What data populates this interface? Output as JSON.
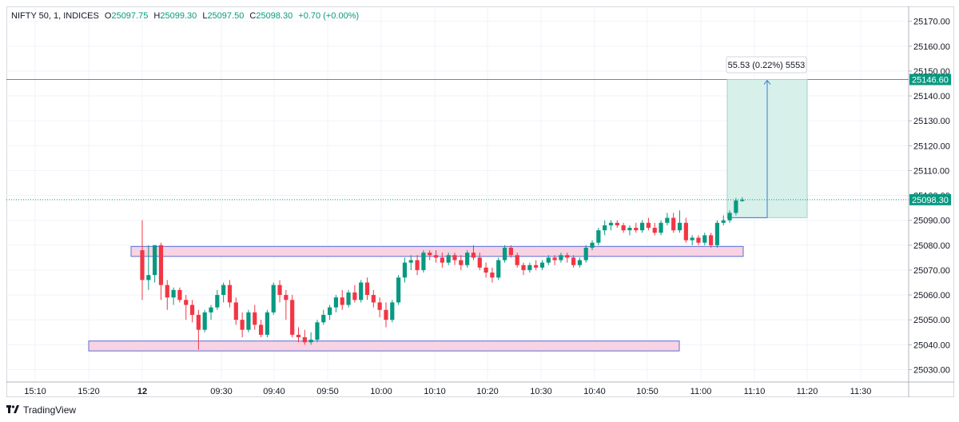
{
  "header": {
    "symbol": "NIFTY 50, 1, INDICES",
    "o_label": "O",
    "o_value": "25097.75",
    "h_label": "H",
    "h_value": "25099.30",
    "l_label": "L",
    "l_value": "25097.50",
    "c_label": "C",
    "c_value": "25098.30",
    "change": "+0.70 (+0.00%)"
  },
  "footer": {
    "brand": "TradingView"
  },
  "colors": {
    "up": "#089981",
    "down": "#f23645",
    "zone_fill": "#f8d3e3",
    "zone_border": "#5b6fd6",
    "target_fill": "#d7f0ea",
    "target_line": "#4a97a3",
    "grid": "#f0f3fa"
  },
  "chart_data": {
    "type": "candlestick",
    "y_ticks": [
      "25170.00",
      "25160.00",
      "25150.00",
      "25140.00",
      "25130.00",
      "25120.00",
      "25110.00",
      "25100.00",
      "25090.00",
      "25080.00",
      "25070.00",
      "25060.00",
      "25050.00",
      "25040.00",
      "25030.00"
    ],
    "ylim": [
      25025,
      25176
    ],
    "x_ticks": [
      {
        "t": 15.1667,
        "label": "15:10"
      },
      {
        "t": 15.3333,
        "label": "15:20"
      },
      {
        "t": 12,
        "label": "12"
      },
      {
        "t": 12.5,
        "label": "09:30"
      },
      {
        "t": 12.6667,
        "label": "09:40"
      },
      {
        "t": 12.8333,
        "label": "09:50"
      },
      {
        "t": 13,
        "label": "10:00"
      },
      {
        "t": 13.1667,
        "label": "10:10"
      },
      {
        "t": 13.3333,
        "label": "10:20"
      },
      {
        "t": 13.5,
        "label": "10:30"
      },
      {
        "t": 13.6667,
        "label": "10:40"
      },
      {
        "t": 13.8333,
        "label": "10:50"
      },
      {
        "t": 14,
        "label": "11:00"
      },
      {
        "t": 14.1667,
        "label": "11:10"
      },
      {
        "t": 14.3333,
        "label": "11:20"
      },
      {
        "t": 14.5,
        "label": "11:30"
      }
    ],
    "candles": [
      [
        25078,
        25090,
        25058,
        25066
      ],
      [
        25066,
        25080,
        25062,
        25068
      ],
      [
        25068,
        25080,
        25065,
        25080
      ],
      [
        25080,
        25081,
        25058,
        25064
      ],
      [
        25064,
        25066,
        25054,
        25059
      ],
      [
        25059,
        25063,
        25056,
        25062
      ],
      [
        25062,
        25063,
        25057,
        25058
      ],
      [
        25058,
        25060,
        25050,
        25056
      ],
      [
        25056,
        25058,
        25049,
        25052
      ],
      [
        25052,
        25054,
        25038,
        25046
      ],
      [
        25046,
        25054,
        25045,
        25053
      ],
      [
        25053,
        25056,
        25050,
        25055
      ],
      [
        25055,
        25062,
        25054,
        25060
      ],
      [
        25060,
        25065,
        25057,
        25064
      ],
      [
        25064,
        25066,
        25055,
        25057
      ],
      [
        25057,
        25059,
        25048,
        25050
      ],
      [
        25050,
        25053,
        25043,
        25046
      ],
      [
        25046,
        25054,
        25045,
        25053
      ],
      [
        25053,
        25056,
        25046,
        25048
      ],
      [
        25048,
        25050,
        25043,
        25044
      ],
      [
        25044,
        25054,
        25043,
        25053
      ],
      [
        25053,
        25065,
        25052,
        25064
      ],
      [
        25064,
        25066,
        25057,
        25060
      ],
      [
        25060,
        25062,
        25050,
        25058
      ],
      [
        25058,
        25060,
        25043,
        25044
      ],
      [
        25044,
        25047,
        25041,
        25043
      ],
      [
        25043,
        25046,
        25040,
        25041
      ],
      [
        25041,
        25045,
        25040,
        25042
      ],
      [
        25042,
        25050,
        25041,
        25049
      ],
      [
        25049,
        25054,
        25048,
        25052
      ],
      [
        25052,
        25056,
        25050,
        25055
      ],
      [
        25055,
        25060,
        25053,
        25059
      ],
      [
        25059,
        25062,
        25054,
        25056
      ],
      [
        25056,
        25062,
        25055,
        25061
      ],
      [
        25061,
        25064,
        25057,
        25058
      ],
      [
        25058,
        25066,
        25057,
        25065
      ],
      [
        25065,
        25067,
        25058,
        25060
      ],
      [
        25060,
        25062,
        25055,
        25057
      ],
      [
        25057,
        25059,
        25051,
        25054
      ],
      [
        25054,
        25057,
        25047,
        25050
      ],
      [
        25050,
        25058,
        25049,
        25057
      ],
      [
        25057,
        25068,
        25056,
        25067
      ],
      [
        25067,
        25075,
        25065,
        25073
      ],
      [
        25073,
        25076,
        25070,
        25074
      ],
      [
        25074,
        25076,
        25068,
        25070
      ],
      [
        25070,
        25078,
        25069,
        25077
      ],
      [
        25077,
        25078,
        25074,
        25076
      ],
      [
        25076,
        25078,
        25073,
        25075
      ],
      [
        25075,
        25077,
        25071,
        25073
      ],
      [
        25073,
        25077,
        25072,
        25076
      ],
      [
        25076,
        25077,
        25072,
        25074
      ],
      [
        25074,
        25076,
        25070,
        25072
      ],
      [
        25072,
        25078,
        25071,
        25077
      ],
      [
        25077,
        25080,
        25074,
        25075
      ],
      [
        25075,
        25077,
        25070,
        25071
      ],
      [
        25071,
        25073,
        25067,
        25069
      ],
      [
        25069,
        25071,
        25065,
        25067
      ],
      [
        25067,
        25075,
        25066,
        25074
      ],
      [
        25074,
        25080,
        25073,
        25079
      ],
      [
        25079,
        25080,
        25075,
        25076
      ],
      [
        25076,
        25077,
        25071,
        25072
      ],
      [
        25072,
        25073,
        25068,
        25070
      ],
      [
        25070,
        25073,
        25069,
        25072
      ],
      [
        25072,
        25074,
        25070,
        25071
      ],
      [
        25071,
        25074,
        25070,
        25073
      ],
      [
        25073,
        25076,
        25072,
        25075
      ],
      [
        25075,
        25076,
        25072,
        25074
      ],
      [
        25074,
        25077,
        25073,
        25076
      ],
      [
        25076,
        25077,
        25073,
        25075
      ],
      [
        25075,
        25076,
        25071,
        25072
      ],
      [
        25072,
        25075,
        25071,
        25074
      ],
      [
        25074,
        25080,
        25073,
        25079
      ],
      [
        25079,
        25082,
        25078,
        25081
      ],
      [
        25081,
        25087,
        25080,
        25086
      ],
      [
        25086,
        25090,
        25084,
        25088
      ],
      [
        25088,
        25090,
        25086,
        25089
      ],
      [
        25089,
        25090,
        25087,
        25088
      ],
      [
        25088,
        25089,
        25085,
        25086
      ],
      [
        25086,
        25088,
        25084,
        25087
      ],
      [
        25087,
        25089,
        25085,
        25086
      ],
      [
        25086,
        25090,
        25085,
        25089
      ],
      [
        25089,
        25091,
        25086,
        25087
      ],
      [
        25087,
        25089,
        25084,
        25085
      ],
      [
        25085,
        25090,
        25084,
        25089
      ],
      [
        25089,
        25093,
        25088,
        25091
      ],
      [
        25091,
        25093,
        25085,
        25086
      ],
      [
        25086,
        25094,
        25085,
        25089
      ],
      [
        25089,
        25091,
        25081,
        25082
      ],
      [
        25082,
        25084,
        25080,
        25083
      ],
      [
        25083,
        25084,
        25080,
        25081
      ],
      [
        25081,
        25085,
        25080,
        25084
      ],
      [
        25084,
        25085,
        25079,
        25080
      ],
      [
        25080,
        25090,
        25079,
        25089
      ],
      [
        25089,
        25092,
        25088,
        25090
      ],
      [
        25090,
        25094,
        25089,
        25093
      ],
      [
        25093,
        25099,
        25092,
        25098
      ],
      [
        25097.75,
        25099.3,
        25097.5,
        25098.3
      ]
    ],
    "zones": [
      {
        "from": 25075.5,
        "to": 25079.5
      },
      {
        "from": 25037.5,
        "to": 25041.5
      }
    ],
    "target": {
      "from": 25091.07,
      "to": 25146.6,
      "label": "55.53 (0.22%) 5553"
    },
    "target_line_label": "25146.60",
    "last_price_label": "25098.30",
    "last_price": 25098.3
  }
}
